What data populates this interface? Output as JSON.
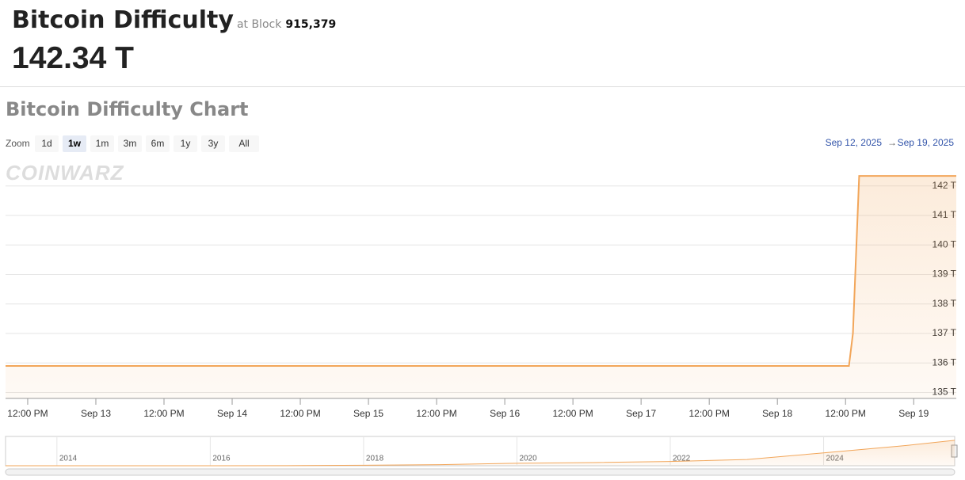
{
  "header": {
    "title": "Bitcoin Difficulty",
    "block_prefix": "at Block",
    "block": "915,379",
    "value": "142.34 T"
  },
  "chart_title": "Bitcoin Difficulty Chart",
  "zoom": {
    "label": "Zoom",
    "buttons": [
      "1d",
      "1w",
      "1m",
      "3m",
      "6m",
      "1y",
      "3y",
      "All"
    ],
    "selected": "1w"
  },
  "range": {
    "from": "Sep 12, 2025",
    "arrow": "→",
    "to": "Sep 19, 2025"
  },
  "watermark": "CoinWarz",
  "chart_data": [
    {
      "type": "area",
      "x": [
        8.1,
        156.6,
        157.3,
        158.4,
        175.5
      ],
      "values": [
        135.9,
        135.9,
        137,
        142.34,
        142.34
      ],
      "color": "#f2a65a",
      "grid": true,
      "xlim": [
        8.1,
        175.5
      ],
      "ylim": [
        134.8,
        142.8
      ],
      "xticks": [
        {
          "value": 12,
          "label": "12:00 PM"
        },
        {
          "value": 24,
          "label": "Sep 13"
        },
        {
          "value": 36,
          "label": "12:00 PM"
        },
        {
          "value": 48,
          "label": "Sep 14"
        },
        {
          "value": 60,
          "label": "12:00 PM"
        },
        {
          "value": 72,
          "label": "Sep 15"
        },
        {
          "value": 84,
          "label": "12:00 PM"
        },
        {
          "value": 96,
          "label": "Sep 16"
        },
        {
          "value": 108,
          "label": "12:00 PM"
        },
        {
          "value": 120,
          "label": "Sep 17"
        },
        {
          "value": 132,
          "label": "12:00 PM"
        },
        {
          "value": 144,
          "label": "Sep 18"
        },
        {
          "value": 156,
          "label": "12:00 PM"
        },
        {
          "value": 168,
          "label": "Sep 19"
        }
      ],
      "yticks": [
        {
          "value": 135,
          "label": "135 T"
        },
        {
          "value": 136,
          "label": "136 T"
        },
        {
          "value": 137,
          "label": "137 T"
        },
        {
          "value": 138,
          "label": "138 T"
        },
        {
          "value": 139,
          "label": "139 T"
        },
        {
          "value": 140,
          "label": "140 T"
        },
        {
          "value": 141,
          "label": "141 T"
        },
        {
          "value": 142,
          "label": "142 T"
        }
      ]
    },
    {
      "type": "area",
      "x": [
        2013.33,
        2015,
        2016,
        2017,
        2018,
        2019,
        2020,
        2021,
        2022,
        2023,
        2024,
        2025,
        2025.71
      ],
      "values": [
        0.003,
        0.05,
        0.2,
        0.8,
        3,
        6,
        14,
        18,
        24,
        35,
        72,
        110,
        142.34
      ],
      "color": "#f2a65a",
      "grid": false,
      "xlim": [
        2013.33,
        2025.71
      ],
      "ylim": [
        0,
        164
      ],
      "xticks": [
        2014,
        2016,
        2018,
        2020,
        2022,
        2024
      ]
    }
  ]
}
